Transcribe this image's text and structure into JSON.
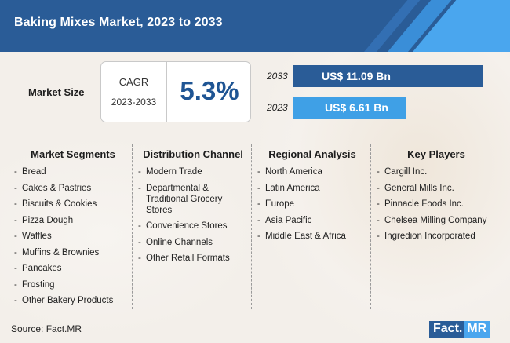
{
  "header": {
    "title": "Baking Mixes Market, 2023 to 2033"
  },
  "market_size": {
    "label": "Market Size",
    "cagr_label": "CAGR",
    "cagr_years": "2023-2033",
    "cagr_value": "5.3%"
  },
  "chart_data": {
    "type": "bar",
    "orientation": "horizontal",
    "categories": [
      "2033",
      "2023"
    ],
    "values": [
      11.09,
      6.61
    ],
    "value_labels": [
      "US$ 11.09 Bn",
      "US$ 6.61 Bn"
    ],
    "colors": [
      "#2a5c97",
      "#3fa0e6"
    ],
    "title": "",
    "xlabel": "",
    "ylabel": "",
    "xlim": [
      0,
      11.09
    ]
  },
  "columns": [
    {
      "title": "Market Segments",
      "items": [
        "Bread",
        "Cakes & Pastries",
        "Biscuits & Cookies",
        "Pizza Dough",
        "Waffles",
        "Muffins & Brownies",
        "Pancakes",
        "Frosting",
        "Other Bakery Products"
      ]
    },
    {
      "title": "Distribution Channel",
      "items": [
        "Modern Trade",
        "Departmental & Traditional Grocery Stores",
        "Convenience Stores",
        "Online Channels",
        "Other Retail Formats"
      ]
    },
    {
      "title": "Regional Analysis",
      "items": [
        "North America",
        "Latin America",
        "Europe",
        "Asia Pacific",
        "Middle East & Africa"
      ]
    },
    {
      "title": "Key Players",
      "items": [
        "Cargill Inc.",
        "General Mills Inc.",
        "Pinnacle Foods Inc.",
        "Chelsea Milling Company",
        "Ingredion Incorporated"
      ]
    }
  ],
  "footer": {
    "source": "Source: Fact.MR",
    "logo_left": "Fact.",
    "logo_right": "MR"
  }
}
